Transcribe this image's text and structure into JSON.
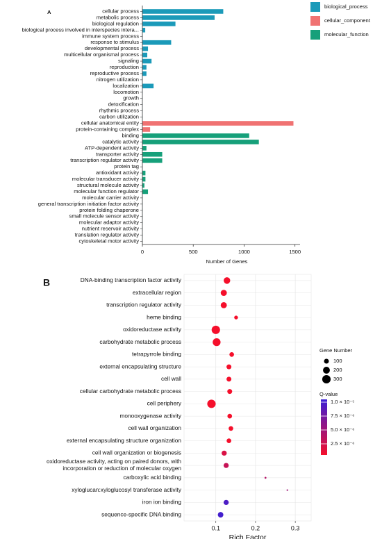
{
  "chart_data": [
    {
      "type": "bar",
      "orientation": "horizontal",
      "panel_label": "A",
      "x_label": "Number of Genes",
      "categories": [
        "cellular process",
        "metabolic process",
        "biological regulation",
        "biological process involved in interspecies intera...",
        "immune system process",
        "response to stimulus",
        "developmental process",
        "multicellular organismal process",
        "signaling",
        "reproduction",
        "reproductive process",
        "nitrogen utilization",
        "localization",
        "locomotion",
        "growth",
        "detoxification",
        "rhythmic process",
        "carbon utilization",
        "cellular anatomical entity",
        "protein-containing complex",
        "binding",
        "catalytic activity",
        "ATP-dependent activity",
        "transporter activity",
        "transcription regulator activity",
        "protein tag",
        "antioxidant activity",
        "molecular transducer activity",
        "structural molecule activity",
        "molecular function regulator",
        "molecular carrier activity",
        "general transcription initiation factor activity",
        "protein folding chaperone",
        "small molecule sensor activity",
        "molecular adaptor activity",
        "nutrient reservoir activity",
        "translation regulator activity",
        "cytoskeletal motor activity"
      ],
      "series": [
        {
          "name": "biological_process",
          "color": "#1b9ab9",
          "values": [
            795,
            710,
            325,
            28,
            2,
            283,
            55,
            48,
            90,
            40,
            40,
            1,
            110,
            1,
            1,
            1,
            1,
            1,
            null,
            null,
            null,
            null,
            null,
            null,
            null,
            null,
            null,
            null,
            null,
            null,
            null,
            null,
            null,
            null,
            null,
            null,
            null,
            null
          ]
        },
        {
          "name": "cellular_component",
          "color": "#f07272",
          "values": [
            null,
            null,
            null,
            null,
            null,
            null,
            null,
            null,
            null,
            null,
            null,
            null,
            null,
            null,
            null,
            null,
            null,
            null,
            1485,
            76,
            null,
            null,
            null,
            null,
            null,
            null,
            null,
            null,
            null,
            null,
            null,
            null,
            null,
            null,
            null,
            null,
            null,
            null
          ]
        },
        {
          "name": "molecular_function",
          "color": "#16a07a",
          "values": [
            null,
            null,
            null,
            null,
            null,
            null,
            null,
            null,
            null,
            null,
            null,
            null,
            null,
            null,
            null,
            null,
            null,
            null,
            null,
            null,
            1050,
            1145,
            40,
            195,
            195,
            1,
            30,
            30,
            20,
            55,
            1,
            1,
            1,
            1,
            1,
            1,
            1,
            1
          ]
        }
      ],
      "xlim": [
        0,
        1550
      ],
      "xticks": [
        0,
        500,
        1000,
        1500
      ],
      "legend": "top-right"
    },
    {
      "type": "bubble",
      "panel_label": "B",
      "x_label": "Rich Factor",
      "categories": [
        "DNA-binding transcription factor activity",
        "extracellular region",
        "transcription regulator activity",
        "heme binding",
        "oxidoreductase activity",
        "carbohydrate metabolic process",
        "tetrapyrrole binding",
        "external encapsulating structure",
        "cell wall",
        "cellular carbohydrate metabolic process",
        "cell periphery",
        "monooxygenase activity",
        "cell wall organization",
        "external encapsulating structure organization",
        "cell wall organization or biogenesis",
        "oxidoreductase activity, acting on paired donors, with\nincorporation or reduction of molecular oxygen",
        "carboxylic acid binding",
        "xyloglucan:xyloglucosyl transferase activity",
        "iron ion binding",
        "sequence-specific DNA binding"
      ],
      "values": [
        0.128,
        0.12,
        0.12,
        0.151,
        0.1,
        0.102,
        0.14,
        0.133,
        0.133,
        0.135,
        0.089,
        0.135,
        0.138,
        0.133,
        0.121,
        0.126,
        0.225,
        0.28,
        0.126,
        0.112
      ],
      "sizes": [
        180,
        160,
        160,
        60,
        300,
        260,
        90,
        100,
        100,
        100,
        300,
        90,
        90,
        90,
        110,
        110,
        15,
        10,
        110,
        130
      ],
      "qvalues": [
        5e-07,
        5e-07,
        5e-07,
        5e-07,
        5e-07,
        5e-07,
        5e-07,
        5e-07,
        5e-07,
        5e-07,
        5e-07,
        5e-07,
        5e-07,
        5e-07,
        2e-06,
        3e-06,
        4e-06,
        5e-06,
        9.5e-06,
        1e-05
      ],
      "xlim": [
        0.02,
        0.34
      ],
      "xticks": [
        0.1,
        0.2,
        0.3
      ],
      "grid": true,
      "size_legend": {
        "title": "Gene Number",
        "values": [
          100,
          200,
          300
        ],
        "color": "#000000"
      },
      "color_legend": {
        "title": "Q-value",
        "low_color": "#f50f2b",
        "high_color": "#3a1fd6",
        "lim": [
          5e-07,
          1.05e-05
        ],
        "ticks": [
          {
            "value": 2.5e-06,
            "label": "2.5 × 10⁻⁶"
          },
          {
            "value": 5e-06,
            "label": "5.0 × 10⁻⁶"
          },
          {
            "value": 7.5e-06,
            "label": "7.5 × 10⁻⁶"
          },
          {
            "value": 1e-05,
            "label": "1.0 × 10⁻⁵"
          }
        ]
      }
    }
  ]
}
